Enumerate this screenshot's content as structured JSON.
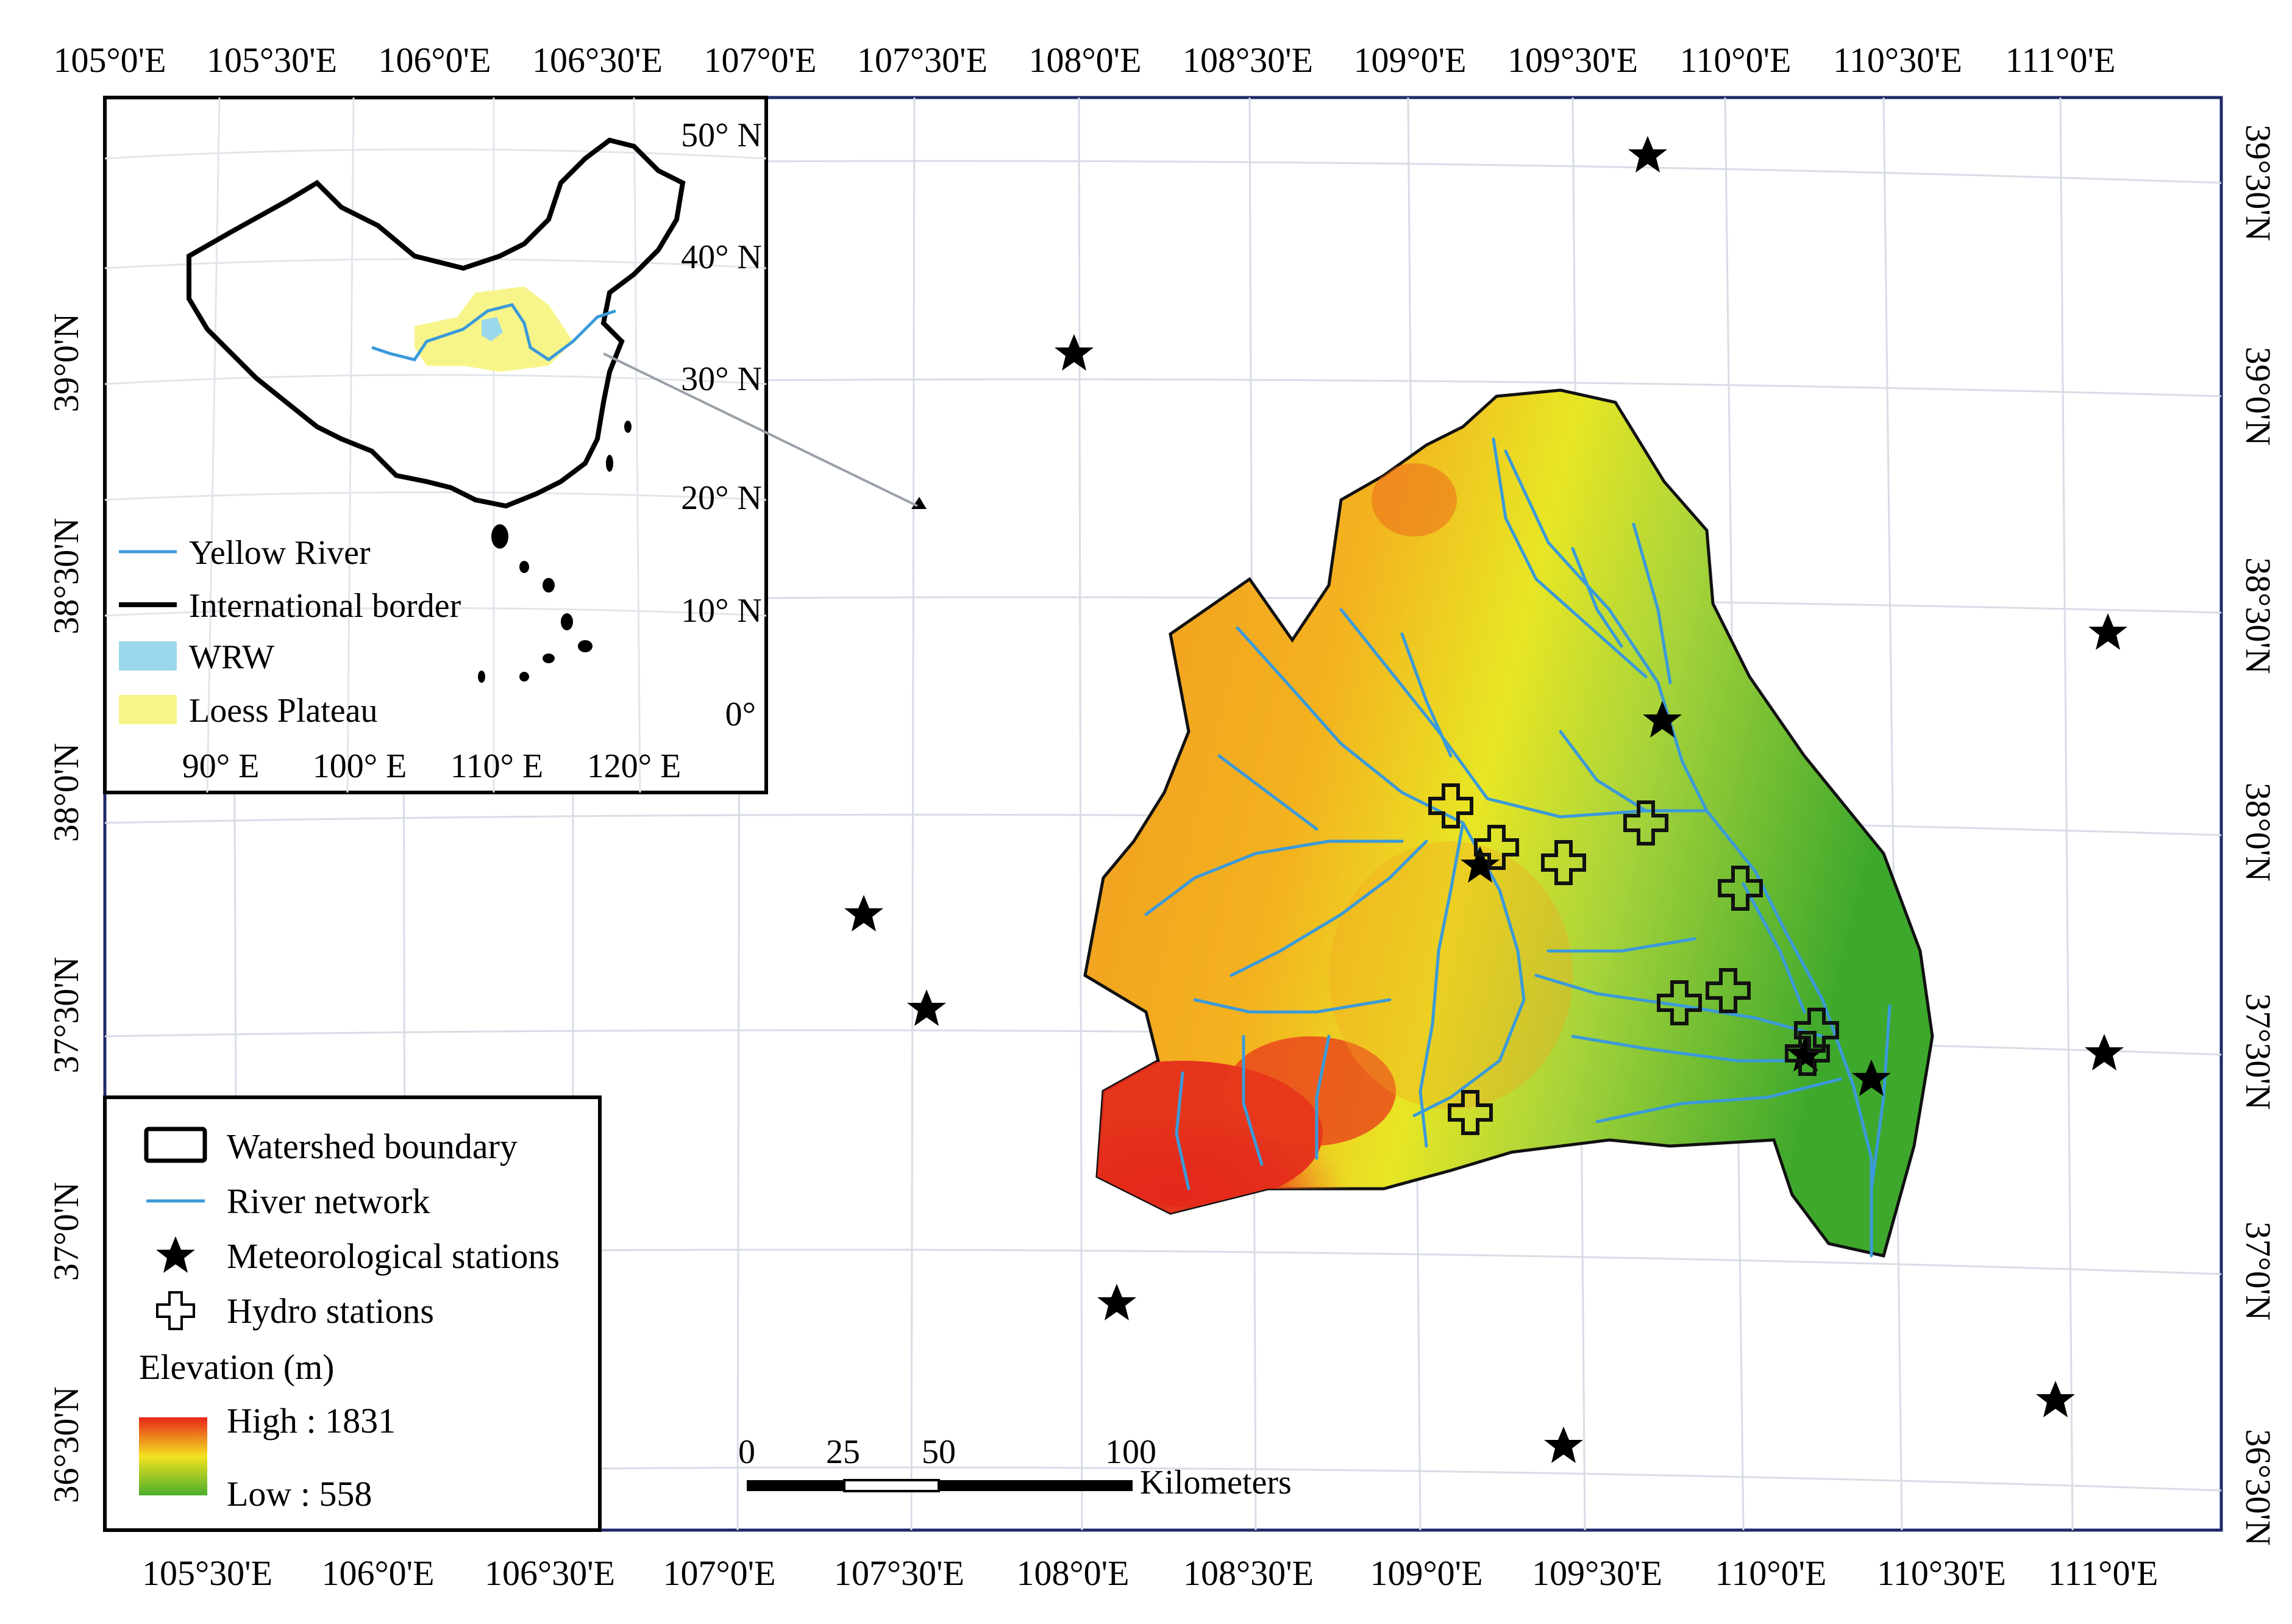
{
  "map": {
    "top_axis_labels": [
      "105°0'E",
      "105°30'E",
      "106°0'E",
      "106°30'E",
      "107°0'E",
      "107°30'E",
      "108°0'E",
      "108°30'E",
      "109°0'E",
      "109°30'E",
      "110°0'E",
      "110°30'E",
      "111°0'E"
    ],
    "bottom_axis_labels": [
      "105°30'E",
      "106°0'E",
      "106°30'E",
      "107°0'E",
      "107°30'E",
      "108°0'E",
      "108°30'E",
      "109°0'E",
      "109°30'E",
      "110°0'E",
      "110°30'E",
      "111°0'E"
    ],
    "left_axis_labels": [
      "39°0'N",
      "38°30'N",
      "38°0'N",
      "37°30'N",
      "37°0'N",
      "36°30'N"
    ],
    "right_axis_labels": [
      "39°30'N",
      "39°0'N",
      "38°30'N",
      "38°0'N",
      "37°30'N",
      "37°0'N",
      "36°30'N"
    ],
    "colors": {
      "frame": "#1f2a6b",
      "river": "#3b9ad9",
      "grid": "#d8dce6",
      "elev_high": "#e8261a",
      "elev_mid": "#f3e21f",
      "elev_low": "#4caf2c",
      "wrw": "#9ad7ec",
      "loess": "#f7f58a"
    }
  },
  "inset": {
    "lat_labels": [
      "50° N",
      "40° N",
      "30° N",
      "20° N",
      "10° N",
      "0°"
    ],
    "lon_labels": [
      "90° E",
      "100° E",
      "110° E",
      "120° E"
    ],
    "legend": [
      {
        "label": "Yellow River",
        "symbol": "line-blue"
      },
      {
        "label": "International border",
        "symbol": "line-black"
      },
      {
        "label": "WRW",
        "symbol": "fill-cyan"
      },
      {
        "label": "Loess Plateau",
        "symbol": "fill-yellow"
      }
    ]
  },
  "legend": {
    "items": [
      {
        "label": "Watershed boundary",
        "symbol": "watershed-boundary-icon"
      },
      {
        "label": "River network",
        "symbol": "river-line-icon"
      },
      {
        "label": "Meteorological stations",
        "symbol": "star-icon"
      },
      {
        "label": "Hydro stations",
        "symbol": "cross-icon"
      }
    ],
    "elevation_title": "Elevation (m)",
    "elevation_high": "High : 1831",
    "elevation_low": "Low : 558"
  },
  "scale_bar": {
    "ticks": [
      "0",
      "25",
      "50",
      "100"
    ],
    "unit": "Kilometers"
  }
}
